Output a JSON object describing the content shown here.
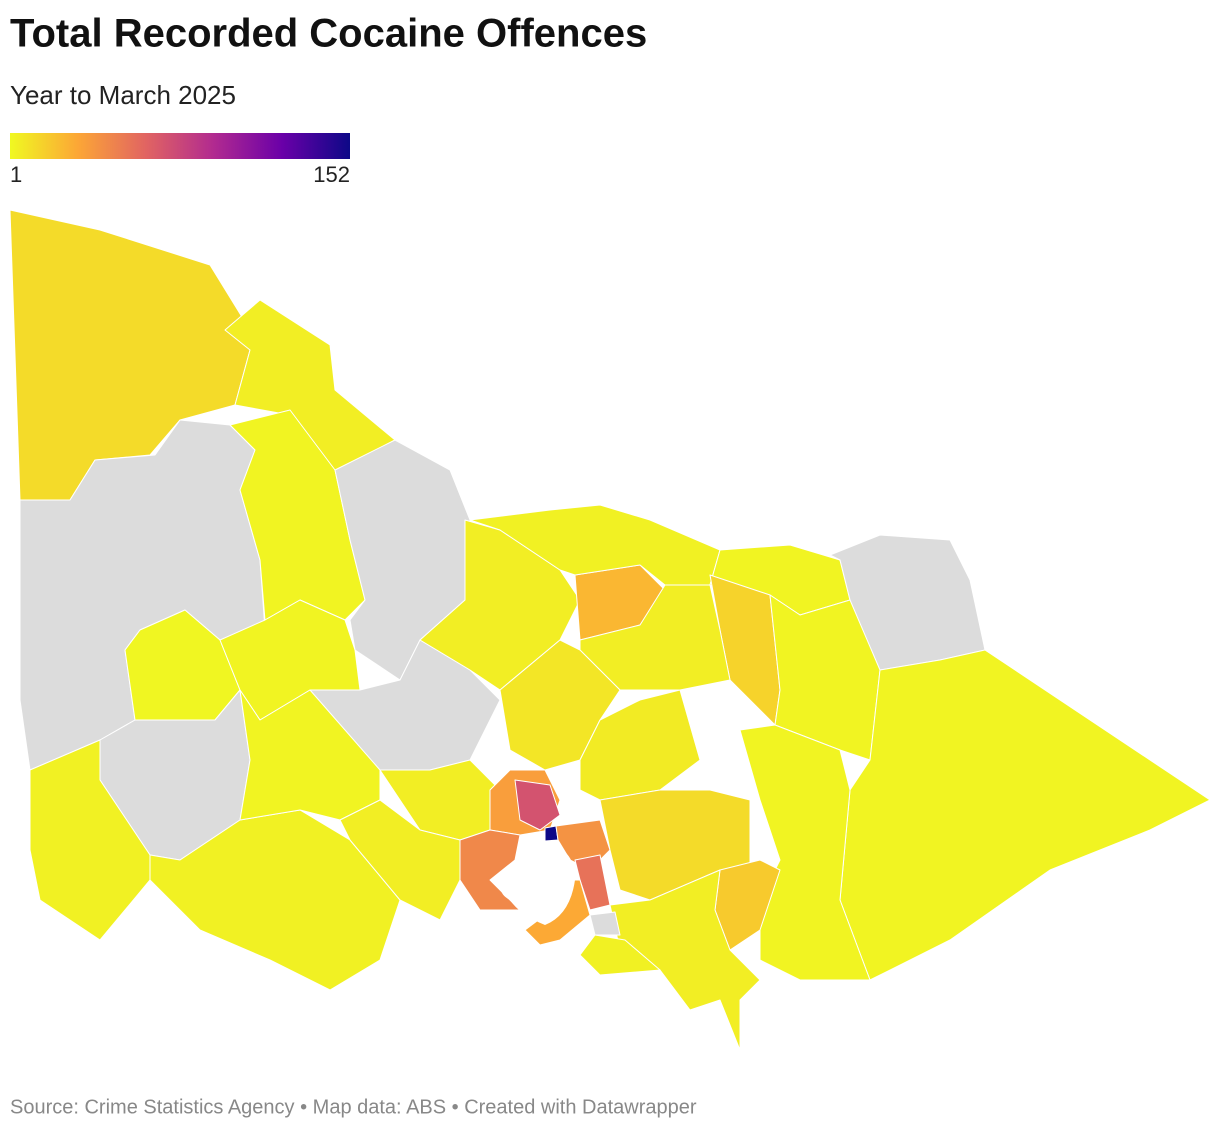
{
  "header": {
    "title": "Total Recorded Cocaine Offences",
    "subtitle": "Year to March 2025"
  },
  "legend": {
    "min": 1,
    "max": 152,
    "colors": [
      "#f0f921",
      "#fca636",
      "#e16462",
      "#b12a90",
      "#6a00a8",
      "#0d0887"
    ],
    "no_data_color": "#dcdcdc"
  },
  "map": {
    "values": [
      12,
      5,
      null,
      3,
      null,
      2,
      3,
      null,
      4,
      4,
      3,
      null,
      5,
      25,
      4,
      3,
      null,
      15,
      5,
      3,
      3,
      3,
      8,
      5,
      5,
      35,
      70,
      152,
      45,
      40,
      55,
      30,
      6,
      12,
      18,
      5,
      null,
      4
    ]
  },
  "footer": {
    "source": "Source: Crime Statistics Agency • Map data: ABS • Created with Datawrapper"
  }
}
